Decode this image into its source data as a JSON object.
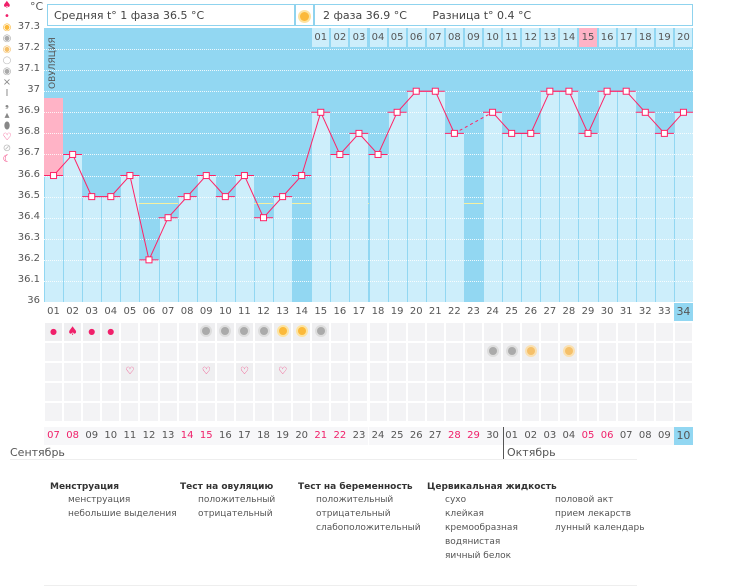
{
  "unit_label": "°C",
  "header": {
    "phase1": "Средняя t° 1 фаза 36.5 °C",
    "phase2": "2 фаза 36.9 °C",
    "diff": "Разница t° 0.4 °C",
    "ovulation_icon": "sun-icon"
  },
  "ovulation_label": "ОВУЛЯЦИЯ",
  "chart_data": {
    "type": "line",
    "ylim": [
      36,
      37.3
    ],
    "yticks": [
      "37.3",
      "37.2",
      "37.1",
      "37",
      "36.9",
      "36.8",
      "36.7",
      "36.6",
      "36.5",
      "36.4",
      "36.3",
      "36.2",
      "36.1",
      "36"
    ],
    "cycle_days": [
      "01",
      "02",
      "03",
      "04",
      "05",
      "06",
      "07",
      "08",
      "09",
      "10",
      "11",
      "12",
      "13",
      "14",
      "15",
      "16",
      "17",
      "18",
      "19",
      "20",
      "21",
      "22",
      "23",
      "24",
      "25",
      "26",
      "27",
      "28",
      "29",
      "30",
      "31",
      "32",
      "33",
      "34"
    ],
    "temperatures": [
      36.6,
      36.7,
      36.5,
      36.5,
      36.6,
      36.2,
      36.4,
      36.5,
      36.6,
      36.5,
      36.6,
      36.4,
      36.5,
      36.6,
      36.9,
      36.7,
      36.8,
      36.7,
      36.9,
      37.0,
      37.0,
      36.8,
      null,
      36.9,
      36.8,
      36.8,
      37.0,
      37.0,
      36.8,
      37.0,
      37.0,
      36.9,
      36.8,
      36.9
    ],
    "coverline": 36.6,
    "ovulation_day": 14,
    "highlight_day": 29,
    "current_day": 34,
    "phase2_days": [
      "01",
      "02",
      "03",
      "04",
      "05",
      "06",
      "07",
      "08",
      "09",
      "10",
      "11",
      "12",
      "13",
      "14",
      "15",
      "16",
      "17",
      "18",
      "19",
      "20"
    ],
    "colors": {
      "line": "#ff2266",
      "background": "#92d7f2",
      "bar": "#cdeefb",
      "ovulation": "#fbec98",
      "highlight": "#ffb3c6"
    }
  },
  "moon_day": 20,
  "events": {
    "menstruation": {
      "1": "small",
      "2": "heavy",
      "3": "small",
      "4": "small"
    },
    "ovulation_tests": {
      "9": "neg",
      "10": "neg",
      "11": "neg",
      "12": "neg",
      "13": "pos",
      "14": "pos",
      "15": "neg"
    },
    "pregnancy_tests": {
      "24": "weak",
      "25": "weak",
      "26": "pos",
      "28": "pos"
    },
    "intercourse": [
      5,
      9,
      11,
      13
    ]
  },
  "dates": [
    "07",
    "08",
    "09",
    "10",
    "11",
    "12",
    "13",
    "14",
    "15",
    "16",
    "17",
    "18",
    "19",
    "20",
    "21",
    "22",
    "23",
    "24",
    "25",
    "26",
    "27",
    "28",
    "29",
    "30",
    "01",
    "02",
    "03",
    "04",
    "05",
    "06",
    "07",
    "08",
    "09",
    "10"
  ],
  "weekend_indexes": [
    0,
    1,
    7,
    8,
    14,
    15,
    21,
    22,
    28,
    29
  ],
  "months": {
    "sep": "Сентябрь",
    "oct": "Октябрь"
  },
  "legend": {
    "menstruation": {
      "title": "Менструация",
      "items": [
        "менструация",
        "небольшие выделения"
      ]
    },
    "ovulation_test": {
      "title": "Тест на овуляцию",
      "items": [
        "положительный",
        "отрицательный"
      ]
    },
    "pregnancy_test": {
      "title": "Тест на беременность",
      "items": [
        "положительный",
        "отрицательный",
        "слабоположительный"
      ]
    },
    "cervical": {
      "title": "Цервикальная жидкость",
      "items": [
        "сухо",
        "клейкая",
        "кремообразная",
        "водянистая",
        "яичный белок"
      ]
    },
    "other": {
      "items": [
        "половой акт",
        "прием лекарств",
        "лунный календарь"
      ]
    }
  }
}
